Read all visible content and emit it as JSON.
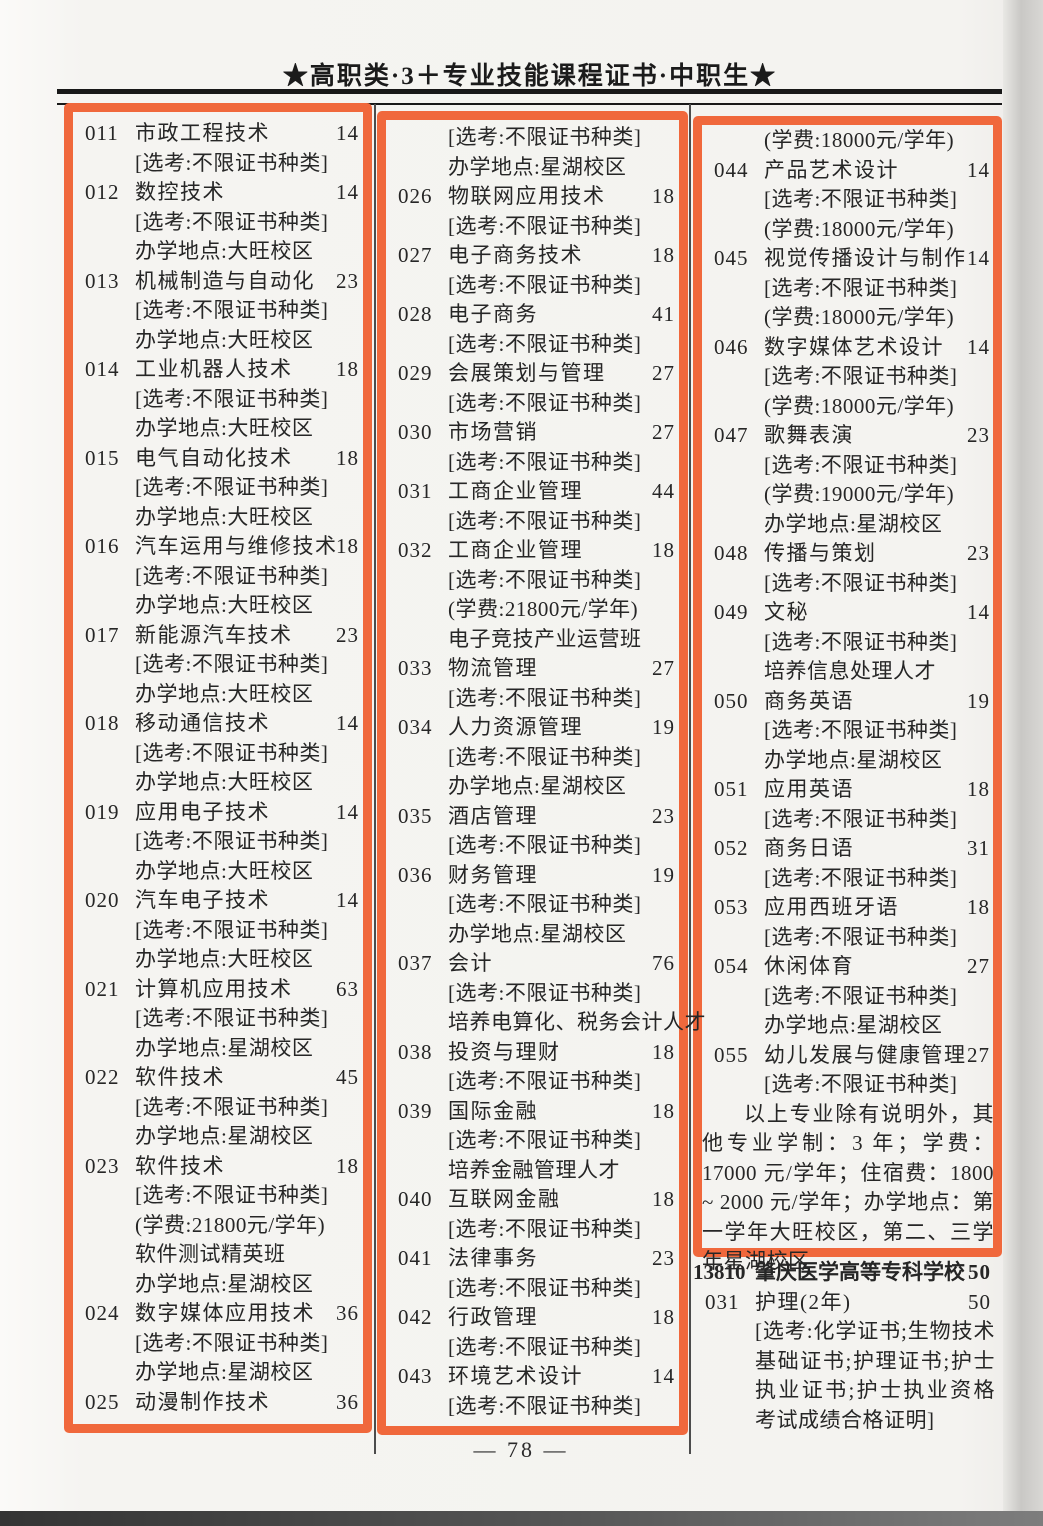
{
  "header": {
    "title": "★高职类·3＋专业技能课程证书·中职生★"
  },
  "page": {
    "number": "— 78 —"
  },
  "colors": {
    "highlight_box": "#f0683c",
    "text": "#262626",
    "rule": "#181818"
  },
  "columns": [
    {
      "lines": [
        {
          "type": "entry",
          "code": "011",
          "name": "市政工程技术",
          "quota": "14"
        },
        {
          "type": "sub",
          "text": "[选考:不限证书种类]"
        },
        {
          "type": "entry",
          "code": "012",
          "name": "数控技术",
          "quota": "14"
        },
        {
          "type": "sub",
          "text": "[选考:不限证书种类]"
        },
        {
          "type": "sub",
          "text": "办学地点:大旺校区"
        },
        {
          "type": "entry",
          "code": "013",
          "name": "机械制造与自动化",
          "quota": "23"
        },
        {
          "type": "sub",
          "text": "[选考:不限证书种类]"
        },
        {
          "type": "sub",
          "text": "办学地点:大旺校区"
        },
        {
          "type": "entry",
          "code": "014",
          "name": "工业机器人技术",
          "quota": "18"
        },
        {
          "type": "sub",
          "text": "[选考:不限证书种类]"
        },
        {
          "type": "sub",
          "text": "办学地点:大旺校区"
        },
        {
          "type": "entry",
          "code": "015",
          "name": "电气自动化技术",
          "quota": "18"
        },
        {
          "type": "sub",
          "text": "[选考:不限证书种类]"
        },
        {
          "type": "sub",
          "text": "办学地点:大旺校区"
        },
        {
          "type": "entry",
          "code": "016",
          "name": "汽车运用与维修技术",
          "quota": "18"
        },
        {
          "type": "sub",
          "text": "[选考:不限证书种类]"
        },
        {
          "type": "sub",
          "text": "办学地点:大旺校区"
        },
        {
          "type": "entry",
          "code": "017",
          "name": "新能源汽车技术",
          "quota": "23"
        },
        {
          "type": "sub",
          "text": "[选考:不限证书种类]"
        },
        {
          "type": "sub",
          "text": "办学地点:大旺校区"
        },
        {
          "type": "entry",
          "code": "018",
          "name": "移动通信技术",
          "quota": "14"
        },
        {
          "type": "sub",
          "text": "[选考:不限证书种类]"
        },
        {
          "type": "sub",
          "text": "办学地点:大旺校区"
        },
        {
          "type": "entry",
          "code": "019",
          "name": "应用电子技术",
          "quota": "14"
        },
        {
          "type": "sub",
          "text": "[选考:不限证书种类]"
        },
        {
          "type": "sub",
          "text": "办学地点:大旺校区"
        },
        {
          "type": "entry",
          "code": "020",
          "name": "汽车电子技术",
          "quota": "14"
        },
        {
          "type": "sub",
          "text": "[选考:不限证书种类]"
        },
        {
          "type": "sub",
          "text": "办学地点:大旺校区"
        },
        {
          "type": "entry",
          "code": "021",
          "name": "计算机应用技术",
          "quota": "63"
        },
        {
          "type": "sub",
          "text": "[选考:不限证书种类]"
        },
        {
          "type": "sub",
          "text": "办学地点:星湖校区"
        },
        {
          "type": "entry",
          "code": "022",
          "name": "软件技术",
          "quota": "45"
        },
        {
          "type": "sub",
          "text": "[选考:不限证书种类]"
        },
        {
          "type": "sub",
          "text": "办学地点:星湖校区"
        },
        {
          "type": "entry",
          "code": "023",
          "name": "软件技术",
          "quota": "18"
        },
        {
          "type": "sub",
          "text": "[选考:不限证书种类]"
        },
        {
          "type": "sub",
          "text": "(学费:21800元/学年)"
        },
        {
          "type": "sub",
          "text": "软件测试精英班"
        },
        {
          "type": "sub",
          "text": "办学地点:星湖校区"
        },
        {
          "type": "entry",
          "code": "024",
          "name": "数字媒体应用技术",
          "quota": "36"
        },
        {
          "type": "sub",
          "text": "[选考:不限证书种类]"
        },
        {
          "type": "sub",
          "text": "办学地点:星湖校区"
        },
        {
          "type": "entry",
          "code": "025",
          "name": "动漫制作技术",
          "quota": "36"
        }
      ]
    },
    {
      "lines": [
        {
          "type": "sub",
          "text": "[选考:不限证书种类]"
        },
        {
          "type": "sub",
          "text": "办学地点:星湖校区"
        },
        {
          "type": "entry",
          "code": "026",
          "name": "物联网应用技术",
          "quota": "18"
        },
        {
          "type": "sub",
          "text": "[选考:不限证书种类]"
        },
        {
          "type": "entry",
          "code": "027",
          "name": "电子商务技术",
          "quota": "18"
        },
        {
          "type": "sub",
          "text": "[选考:不限证书种类]"
        },
        {
          "type": "entry",
          "code": "028",
          "name": "电子商务",
          "quota": "41"
        },
        {
          "type": "sub",
          "text": "[选考:不限证书种类]"
        },
        {
          "type": "entry",
          "code": "029",
          "name": "会展策划与管理",
          "quota": "27"
        },
        {
          "type": "sub",
          "text": "[选考:不限证书种类]"
        },
        {
          "type": "entry",
          "code": "030",
          "name": "市场营销",
          "quota": "27"
        },
        {
          "type": "sub",
          "text": "[选考:不限证书种类]"
        },
        {
          "type": "entry",
          "code": "031",
          "name": "工商企业管理",
          "quota": "44"
        },
        {
          "type": "sub",
          "text": "[选考:不限证书种类]"
        },
        {
          "type": "entry",
          "code": "032",
          "name": "工商企业管理",
          "quota": "18"
        },
        {
          "type": "sub",
          "text": "[选考:不限证书种类]"
        },
        {
          "type": "sub",
          "text": "(学费:21800元/学年)"
        },
        {
          "type": "sub",
          "text": "电子竞技产业运营班"
        },
        {
          "type": "entry",
          "code": "033",
          "name": "物流管理",
          "quota": "27"
        },
        {
          "type": "sub",
          "text": "[选考:不限证书种类]"
        },
        {
          "type": "entry",
          "code": "034",
          "name": "人力资源管理",
          "quota": "19"
        },
        {
          "type": "sub",
          "text": "[选考:不限证书种类]"
        },
        {
          "type": "sub",
          "text": "办学地点:星湖校区"
        },
        {
          "type": "entry",
          "code": "035",
          "name": "酒店管理",
          "quota": "23"
        },
        {
          "type": "sub",
          "text": "[选考:不限证书种类]"
        },
        {
          "type": "entry",
          "code": "036",
          "name": "财务管理",
          "quota": "19"
        },
        {
          "type": "sub",
          "text": "[选考:不限证书种类]"
        },
        {
          "type": "sub",
          "text": "办学地点:星湖校区"
        },
        {
          "type": "entry",
          "code": "037",
          "name": "会计",
          "quota": "76"
        },
        {
          "type": "sub",
          "text": "[选考:不限证书种类]"
        },
        {
          "type": "sub",
          "text": "培养电算化、税务会计人才"
        },
        {
          "type": "entry",
          "code": "038",
          "name": "投资与理财",
          "quota": "18"
        },
        {
          "type": "sub",
          "text": "[选考:不限证书种类]"
        },
        {
          "type": "entry",
          "code": "039",
          "name": "国际金融",
          "quota": "18"
        },
        {
          "type": "sub",
          "text": "[选考:不限证书种类]"
        },
        {
          "type": "sub",
          "text": "培养金融管理人才"
        },
        {
          "type": "entry",
          "code": "040",
          "name": "互联网金融",
          "quota": "18"
        },
        {
          "type": "sub",
          "text": "[选考:不限证书种类]"
        },
        {
          "type": "entry",
          "code": "041",
          "name": "法律事务",
          "quota": "23"
        },
        {
          "type": "sub",
          "text": "[选考:不限证书种类]"
        },
        {
          "type": "entry",
          "code": "042",
          "name": "行政管理",
          "quota": "18"
        },
        {
          "type": "sub",
          "text": "[选考:不限证书种类]"
        },
        {
          "type": "entry",
          "code": "043",
          "name": "环境艺术设计",
          "quota": "14"
        },
        {
          "type": "sub",
          "text": "[选考:不限证书种类]"
        }
      ]
    },
    {
      "lines": [
        {
          "type": "sub",
          "text": "(学费:18000元/学年)"
        },
        {
          "type": "entry",
          "code": "044",
          "name": "产品艺术设计",
          "quota": "14"
        },
        {
          "type": "sub",
          "text": "[选考:不限证书种类]"
        },
        {
          "type": "sub",
          "text": "(学费:18000元/学年)"
        },
        {
          "type": "entry",
          "code": "045",
          "name": "视觉传播设计与制作",
          "quota": "14"
        },
        {
          "type": "sub",
          "text": "[选考:不限证书种类]"
        },
        {
          "type": "sub",
          "text": "(学费:18000元/学年)"
        },
        {
          "type": "entry",
          "code": "046",
          "name": "数字媒体艺术设计",
          "quota": "14"
        },
        {
          "type": "sub",
          "text": "[选考:不限证书种类]"
        },
        {
          "type": "sub",
          "text": "(学费:18000元/学年)"
        },
        {
          "type": "entry",
          "code": "047",
          "name": "歌舞表演",
          "quota": "23"
        },
        {
          "type": "sub",
          "text": "[选考:不限证书种类]"
        },
        {
          "type": "sub",
          "text": "(学费:19000元/学年)"
        },
        {
          "type": "sub",
          "text": "办学地点:星湖校区"
        },
        {
          "type": "entry",
          "code": "048",
          "name": "传播与策划",
          "quota": "23"
        },
        {
          "type": "sub",
          "text": "[选考:不限证书种类]"
        },
        {
          "type": "entry",
          "code": "049",
          "name": "文秘",
          "quota": "14"
        },
        {
          "type": "sub",
          "text": "[选考:不限证书种类]"
        },
        {
          "type": "sub",
          "text": "培养信息处理人才"
        },
        {
          "type": "entry",
          "code": "050",
          "name": "商务英语",
          "quota": "19"
        },
        {
          "type": "sub",
          "text": "[选考:不限证书种类]"
        },
        {
          "type": "sub",
          "text": "办学地点:星湖校区"
        },
        {
          "type": "entry",
          "code": "051",
          "name": "应用英语",
          "quota": "18"
        },
        {
          "type": "sub",
          "text": "[选考:不限证书种类]"
        },
        {
          "type": "entry",
          "code": "052",
          "name": "商务日语",
          "quota": "31"
        },
        {
          "type": "sub",
          "text": "[选考:不限证书种类]"
        },
        {
          "type": "entry",
          "code": "053",
          "name": "应用西班牙语",
          "quota": "18"
        },
        {
          "type": "sub",
          "text": "[选考:不限证书种类]"
        },
        {
          "type": "entry",
          "code": "054",
          "name": "休闲体育",
          "quota": "27"
        },
        {
          "type": "sub",
          "text": "[选考:不限证书种类]"
        },
        {
          "type": "sub",
          "text": "办学地点:星湖校区"
        },
        {
          "type": "entry",
          "code": "055",
          "name": "幼儿发展与健康管理",
          "quota": "27"
        },
        {
          "type": "sub",
          "text": "[选考:不限证书种类]"
        },
        {
          "type": "para",
          "text": "以上专业除有说明外，其他专业学制：3 年；学费：17000 元/学年；住宿费：1800 ~ 2000 元/学年；办学地点：第一学年大旺校区，第二、三学年星湖校区"
        }
      ]
    }
  ],
  "footer_section": {
    "school": {
      "code": "13810",
      "name": "肇庆医学高等专科学校",
      "quota": "50"
    },
    "entry": {
      "code": "031",
      "name": "护理(2年)",
      "quota": "50"
    },
    "note": "[选考:化学证书;生物技术基础证书;护理证书;护士执业证书;护士执业资格考试成绩合格证明]"
  }
}
